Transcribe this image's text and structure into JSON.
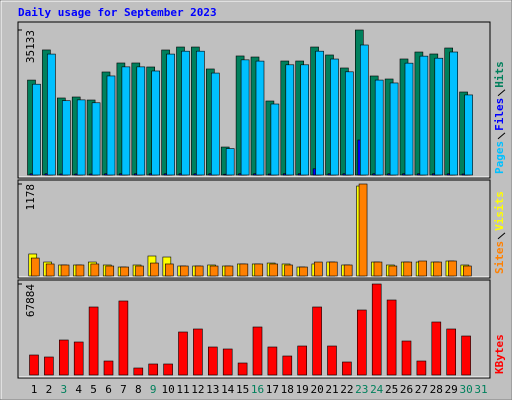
{
  "title": "Daily usage for September 2023",
  "chart_data": [
    {
      "type": "bar",
      "ylim": [
        0,
        35133
      ],
      "yticks": [
        35133
      ],
      "series": [
        {
          "name": "Hits",
          "color": "#00805c",
          "values": [
            23000,
            30300,
            18660,
            18900,
            18170,
            24960,
            27140,
            27140,
            26170,
            30290,
            31010,
            31010,
            25690,
            6780,
            28840,
            28590,
            17930,
            27620,
            27620,
            31010,
            29080,
            25930,
            35133,
            23990,
            23260,
            28110,
            29800,
            29320,
            30770,
            20110,
            null
          ]
        },
        {
          "name": "Files",
          "color": "#0000ff",
          "values": [
            300,
            300,
            250,
            250,
            250,
            300,
            300,
            300,
            300,
            300,
            300,
            300,
            300,
            200,
            300,
            300,
            250,
            300,
            300,
            1500,
            300,
            300,
            8480,
            300,
            300,
            300,
            300,
            300,
            300,
            250,
            null
          ]
        },
        {
          "name": "Pages",
          "color": "#00c0ff",
          "values": [
            22000,
            29300,
            18000,
            18200,
            17500,
            24000,
            26200,
            26200,
            25200,
            29300,
            30000,
            30000,
            24700,
            6400,
            27900,
            27600,
            17200,
            26700,
            26700,
            30000,
            28100,
            25000,
            31500,
            23000,
            22300,
            27100,
            28800,
            28300,
            29800,
            19400,
            null
          ]
        }
      ]
    },
    {
      "type": "bar",
      "ylim": [
        0,
        1178
      ],
      "yticks": [
        1178
      ],
      "series": [
        {
          "name": "Visits",
          "color": "#ffff00",
          "values": [
            282,
            179,
            141,
            141,
            179,
            141,
            115,
            141,
            256,
            243,
            128,
            128,
            141,
            128,
            154,
            154,
            166,
            154,
            115,
            154,
            179,
            141,
            1152,
            179,
            141,
            179,
            179,
            179,
            192,
            141,
            null
          ]
        },
        {
          "name": "Sites",
          "color": "#ff8000",
          "values": [
            230,
            154,
            141,
            141,
            154,
            128,
            115,
            128,
            166,
            154,
            128,
            128,
            128,
            128,
            154,
            154,
            154,
            141,
            115,
            179,
            179,
            141,
            1178,
            179,
            128,
            179,
            192,
            179,
            192,
            128,
            null
          ]
        }
      ]
    },
    {
      "type": "bar",
      "ylim": [
        0,
        67884
      ],
      "yticks": [
        67884
      ],
      "categories": [
        "1",
        "2",
        "3",
        "4",
        "5",
        "6",
        "7",
        "8",
        "9",
        "10",
        "11",
        "12",
        "13",
        "14",
        "15",
        "16",
        "17",
        "18",
        "19",
        "20",
        "21",
        "22",
        "23",
        "24",
        "25",
        "26",
        "27",
        "28",
        "29",
        "30",
        "31"
      ],
      "category_colors": [
        "#000000",
        "#000000",
        "#00805c",
        "#000000",
        "#000000",
        "#000000",
        "#000000",
        "#000000",
        "#00805c",
        "#000000",
        "#000000",
        "#000000",
        "#000000",
        "#000000",
        "#000000",
        "#00805c",
        "#000000",
        "#000000",
        "#000000",
        "#000000",
        "#000000",
        "#000000",
        "#00805c",
        "#00805c",
        "#000000",
        "#000000",
        "#000000",
        "#000000",
        "#000000",
        "#00805c",
        "#00805c"
      ],
      "series": [
        {
          "name": "KBytes",
          "color": "#ff0000",
          "values": [
            14920,
            13430,
            26110,
            24620,
            50730,
            10440,
            55210,
            5220,
            8210,
            8210,
            32080,
            34320,
            20890,
            19400,
            8950,
            35810,
            20890,
            14170,
            21630,
            50730,
            21630,
            9700,
            48490,
            67884,
            55950,
            25360,
            10440,
            39540,
            34320,
            29090,
            null
          ]
        }
      ]
    }
  ]
}
